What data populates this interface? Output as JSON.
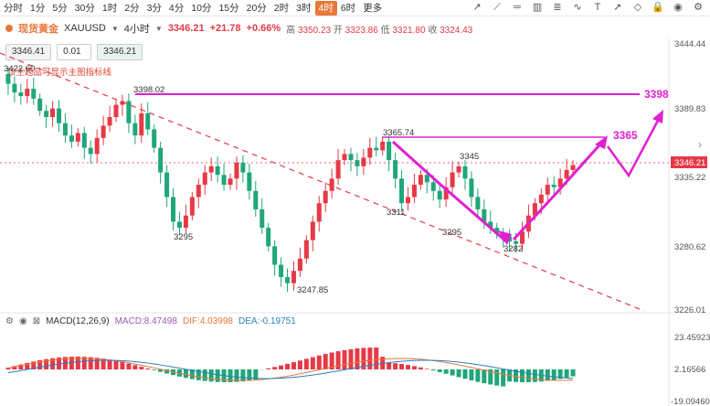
{
  "toolbar": {
    "timeframes": [
      "分时",
      "1分",
      "5分",
      "30分",
      "1时",
      "2分",
      "3分",
      "4分",
      "10分",
      "15分",
      "20分",
      "2时",
      "3时",
      "4时",
      "6时",
      "更多"
    ],
    "active_timeframe": "4时",
    "tool_icons": [
      "trend-line-icon",
      "ray-icon",
      "horizontal-line-icon",
      "channel-icon",
      "fib-icon",
      "pattern-icon",
      "text-icon",
      "arrow-icon",
      "eraser-icon",
      "lock-icon",
      "eye-icon",
      "settings-icon"
    ]
  },
  "info": {
    "symbol_name": "现货黄金",
    "symbol_code": "XAUUSD",
    "period": "4小时",
    "price": "3346.21",
    "change": "+21.78",
    "change_pct": "+0.66%",
    "high_label": "高",
    "high": "3350.23",
    "open_label": "开",
    "open": "3323.86",
    "low_label": "低",
    "low": "3321.80",
    "close_label": "收",
    "close": "3324.43"
  },
  "order": {
    "sell_price": "3346.41",
    "qty": "0.01",
    "buy_price": "3346.21"
  },
  "warning": "该主题品可显示主图指标线",
  "price_axis": [
    "3444.44",
    "3389.83",
    "3335.22",
    "3280.62",
    "3226.01"
  ],
  "current_price_tag": "3346.21",
  "level_3398_label": "3398",
  "level_3365_label": "3365",
  "annotations": {
    "a3398": "3398.02",
    "a3422": "3422.60",
    "a3295a": "3295",
    "a3247": "3247.85",
    "a3365": "3365.74",
    "a3311": "3311",
    "a3345": "3345",
    "a3295b": "3295",
    "a3282": "3282"
  },
  "macd": {
    "label": "MACD(12,26,9)",
    "macd": "MACD:8.47498",
    "dif": "DIF:4.03998",
    "dea": "DEA:-0.19751",
    "axis": [
      "23.45923",
      "2.16566",
      "-19.09460"
    ]
  },
  "colors": {
    "up": "#e63946",
    "down": "#1fa67a",
    "accent": "#e8773a",
    "target": "#e020d0"
  }
}
